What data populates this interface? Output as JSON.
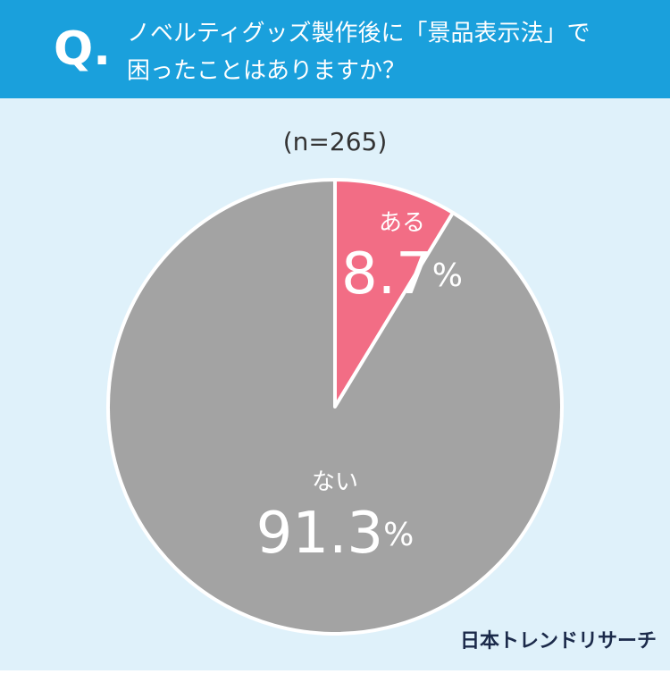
{
  "question_label": "Q.",
  "title": [
    "ノベルティグッズ製作後に「景品表示法」で",
    "困ったことはありますか？"
  ],
  "chart_data": {
    "type": "pie",
    "subtitle": "(n=265)",
    "categories": [
      "ある",
      "ない"
    ],
    "values": [
      8.7,
      91.3
    ],
    "value_labels": [
      "8.7%",
      "91.3%"
    ],
    "colors": [
      "#f26d85",
      "#a3a3a3"
    ]
  },
  "source": "日本トレンドリサーチ"
}
